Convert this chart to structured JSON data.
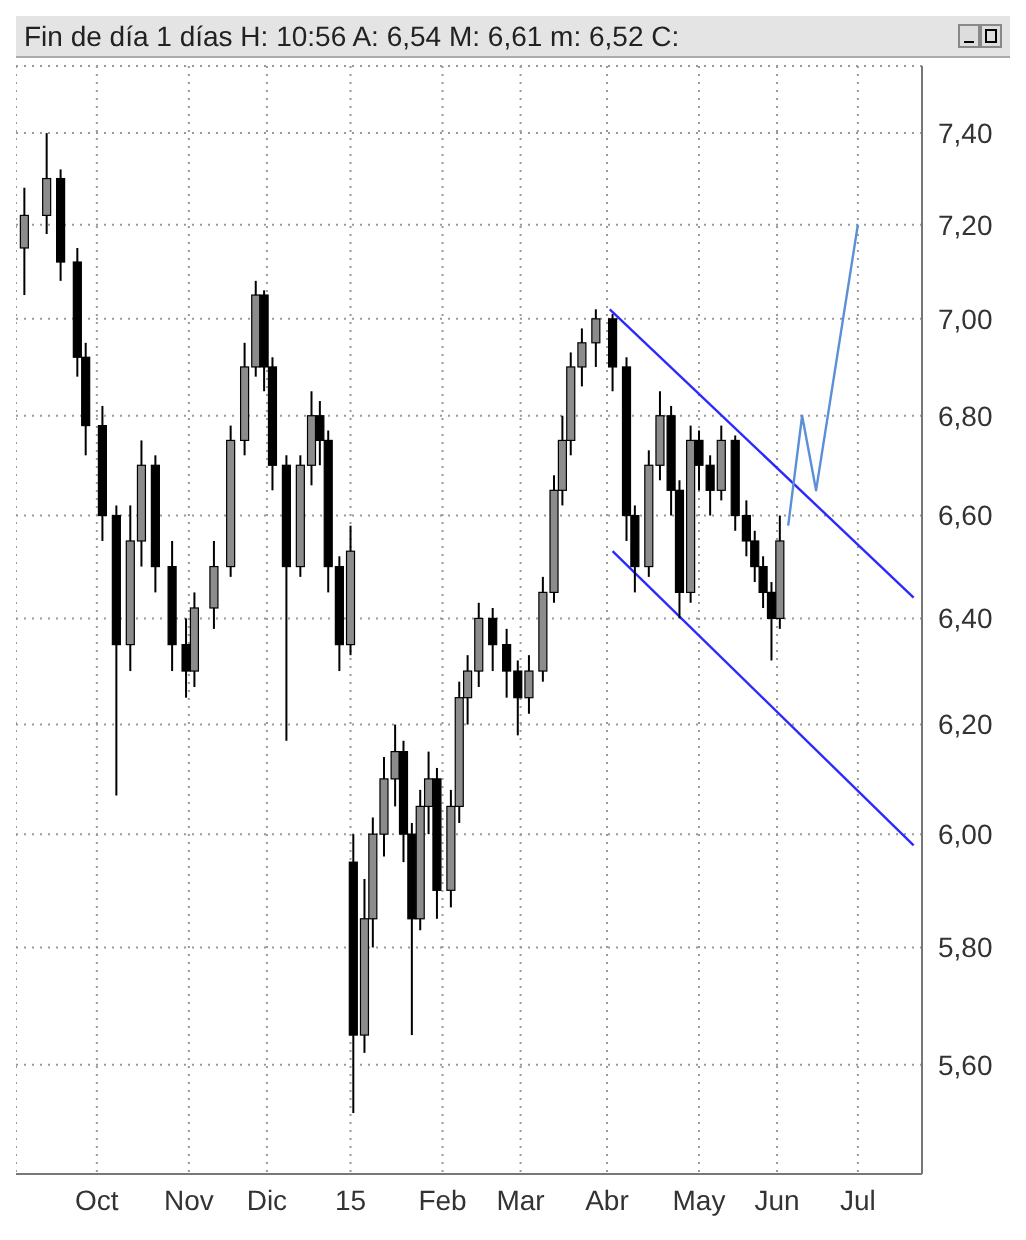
{
  "chart_data": {
    "type": "candlestick",
    "title": "Fin de día 1 días H: 10:56 A: 6,54 M: 6,61 m: 6,52 C:",
    "xlim": [
      "2014-09-09",
      "2015-07-31"
    ],
    "xticks": [
      {
        "value": "2014-10-08",
        "label": "Oct"
      },
      {
        "value": "2014-11-10",
        "label": "Nov"
      },
      {
        "value": "2014-12-08",
        "label": "Dic"
      },
      {
        "value": "2015-01-07",
        "label": "15"
      },
      {
        "value": "2015-02-09",
        "label": "Feb"
      },
      {
        "value": "2015-03-09",
        "label": "Mar"
      },
      {
        "value": "2015-04-09",
        "label": "Abr"
      },
      {
        "value": "2015-05-12",
        "label": "May"
      },
      {
        "value": "2015-06-09",
        "label": "Jun"
      },
      {
        "value": "2015-07-08",
        "label": "Jul"
      }
    ],
    "ylim": [
      5.42,
      7.55
    ],
    "yticks": [
      {
        "value": 5.6,
        "label": "5,60"
      },
      {
        "value": 5.8,
        "label": "5,80"
      },
      {
        "value": 6.0,
        "label": "6,00"
      },
      {
        "value": 6.2,
        "label": "6,20"
      },
      {
        "value": 6.4,
        "label": "6,40"
      },
      {
        "value": 6.6,
        "label": "6,60"
      },
      {
        "value": 6.8,
        "label": "6,80"
      },
      {
        "value": 7.0,
        "label": "7,00"
      },
      {
        "value": 7.2,
        "label": "7,20"
      },
      {
        "value": 7.4,
        "label": "7,40"
      }
    ],
    "log": true,
    "grid": true,
    "series": [
      {
        "color": "#000000",
        "x": [
          "2014-09-12",
          "2014-09-20",
          "2014-09-25",
          "2014-10-01",
          "2014-10-04",
          "2014-10-10",
          "2014-10-15",
          "2014-10-20",
          "2014-10-24",
          "2014-10-29",
          "2014-11-04",
          "2014-11-09",
          "2014-11-12",
          "2014-11-19",
          "2014-11-25",
          "2014-11-30",
          "2014-12-04",
          "2014-12-07",
          "2014-12-10",
          "2014-12-15",
          "2014-12-20",
          "2014-12-24",
          "2014-12-27",
          "2014-12-30",
          "2015-01-03",
          "2015-01-07",
          "2015-01-08",
          "2015-01-12",
          "2015-01-15",
          "2015-01-19",
          "2015-01-23",
          "2015-01-26",
          "2015-01-29",
          "2015-02-01",
          "2015-02-04",
          "2015-02-07",
          "2015-02-12",
          "2015-02-15",
          "2015-02-18",
          "2015-02-22",
          "2015-02-27",
          "2015-03-04",
          "2015-03-08",
          "2015-03-12",
          "2015-03-17",
          "2015-03-21",
          "2015-03-24",
          "2015-03-27",
          "2015-03-31",
          "2015-04-05",
          "2015-04-11",
          "2015-04-16",
          "2015-04-19",
          "2015-04-24",
          "2015-04-28",
          "2015-05-02",
          "2015-05-05",
          "2015-05-09",
          "2015-05-12",
          "2015-05-16",
          "2015-05-20",
          "2015-05-25",
          "2015-05-29",
          "2015-06-01",
          "2015-06-04",
          "2015-06-07",
          "2015-06-10"
        ],
        "ohlc": [
          [
            7.15,
            7.28,
            7.05,
            7.22
          ],
          [
            7.22,
            7.4,
            7.18,
            7.3
          ],
          [
            7.3,
            7.32,
            7.08,
            7.12
          ],
          [
            7.12,
            7.15,
            6.88,
            6.92
          ],
          [
            6.92,
            6.95,
            6.72,
            6.78
          ],
          [
            6.78,
            6.82,
            6.55,
            6.6
          ],
          [
            6.6,
            6.62,
            6.07,
            6.35
          ],
          [
            6.35,
            6.62,
            6.3,
            6.55
          ],
          [
            6.55,
            6.75,
            6.5,
            6.7
          ],
          [
            6.7,
            6.72,
            6.45,
            6.5
          ],
          [
            6.5,
            6.55,
            6.3,
            6.35
          ],
          [
            6.35,
            6.4,
            6.25,
            6.3
          ],
          [
            6.3,
            6.45,
            6.27,
            6.42
          ],
          [
            6.42,
            6.55,
            6.38,
            6.5
          ],
          [
            6.5,
            6.78,
            6.48,
            6.75
          ],
          [
            6.75,
            6.95,
            6.72,
            6.9
          ],
          [
            6.9,
            7.08,
            6.88,
            7.05
          ],
          [
            7.05,
            7.06,
            6.85,
            6.9
          ],
          [
            6.9,
            6.92,
            6.65,
            6.7
          ],
          [
            6.7,
            6.72,
            6.17,
            6.5
          ],
          [
            6.5,
            6.72,
            6.48,
            6.7
          ],
          [
            6.7,
            6.85,
            6.66,
            6.8
          ],
          [
            6.8,
            6.83,
            6.7,
            6.75
          ],
          [
            6.75,
            6.77,
            6.45,
            6.5
          ],
          [
            6.5,
            6.52,
            6.3,
            6.35
          ],
          [
            6.35,
            6.58,
            6.33,
            6.53
          ],
          [
            5.95,
            6.0,
            5.52,
            5.65
          ],
          [
            5.65,
            5.92,
            5.62,
            5.85
          ],
          [
            5.85,
            6.03,
            5.8,
            6.0
          ],
          [
            6.0,
            6.14,
            5.96,
            6.1
          ],
          [
            6.1,
            6.2,
            6.05,
            6.15
          ],
          [
            6.15,
            6.17,
            5.95,
            6.0
          ],
          [
            6.0,
            6.02,
            5.65,
            5.85
          ],
          [
            5.85,
            6.08,
            5.83,
            6.05
          ],
          [
            6.05,
            6.15,
            6.0,
            6.1
          ],
          [
            6.1,
            6.12,
            5.85,
            5.9
          ],
          [
            5.9,
            6.08,
            5.87,
            6.05
          ],
          [
            6.05,
            6.28,
            6.02,
            6.25
          ],
          [
            6.25,
            6.33,
            6.2,
            6.3
          ],
          [
            6.3,
            6.43,
            6.27,
            6.4
          ],
          [
            6.4,
            6.42,
            6.3,
            6.35
          ],
          [
            6.35,
            6.38,
            6.25,
            6.3
          ],
          [
            6.3,
            6.32,
            6.18,
            6.25
          ],
          [
            6.25,
            6.33,
            6.22,
            6.3
          ],
          [
            6.3,
            6.48,
            6.28,
            6.45
          ],
          [
            6.45,
            6.68,
            6.43,
            6.65
          ],
          [
            6.65,
            6.8,
            6.62,
            6.75
          ],
          [
            6.75,
            6.93,
            6.72,
            6.9
          ],
          [
            6.9,
            6.98,
            6.86,
            6.95
          ],
          [
            6.95,
            7.02,
            6.9,
            7.0
          ],
          [
            7.0,
            7.01,
            6.85,
            6.9
          ],
          [
            6.9,
            6.92,
            6.55,
            6.6
          ],
          [
            6.6,
            6.62,
            6.45,
            6.5
          ],
          [
            6.5,
            6.73,
            6.48,
            6.7
          ],
          [
            6.7,
            6.85,
            6.67,
            6.8
          ],
          [
            6.8,
            6.82,
            6.6,
            6.65
          ],
          [
            6.65,
            6.67,
            6.4,
            6.45
          ],
          [
            6.45,
            6.78,
            6.43,
            6.75
          ],
          [
            6.75,
            6.77,
            6.65,
            6.7
          ],
          [
            6.7,
            6.72,
            6.6,
            6.65
          ],
          [
            6.65,
            6.78,
            6.63,
            6.75
          ],
          [
            6.75,
            6.76,
            6.57,
            6.6
          ],
          [
            6.6,
            6.63,
            6.52,
            6.55
          ],
          [
            6.55,
            6.57,
            6.47,
            6.5
          ],
          [
            6.5,
            6.52,
            6.42,
            6.45
          ],
          [
            6.45,
            6.47,
            6.32,
            6.4
          ],
          [
            6.4,
            6.6,
            6.38,
            6.55
          ]
        ]
      },
      {
        "type": "line",
        "color": "#2a2aff",
        "line_style": "solid",
        "x": [
          "2015-04-10",
          "2015-07-28"
        ],
        "values": [
          7.02,
          6.44
        ]
      },
      {
        "type": "line",
        "color": "#2a2aff",
        "line_style": "solid",
        "x": [
          "2015-04-11",
          "2015-07-28"
        ],
        "values": [
          6.53,
          5.98
        ]
      },
      {
        "type": "line",
        "color": "#5b8fd6",
        "line_style": "solid",
        "x": [
          "2015-06-13",
          "2015-06-18",
          "2015-06-23",
          "2015-07-08"
        ],
        "values": [
          6.58,
          6.8,
          6.65,
          7.2
        ]
      }
    ]
  }
}
